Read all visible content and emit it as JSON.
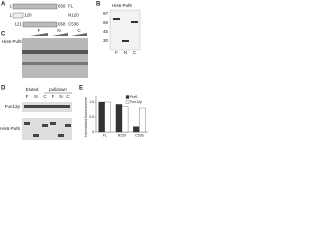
{
  "panels": {
    "a": {
      "letter": "A",
      "constructs": [
        {
          "start": 1,
          "end": 658,
          "name": "FL"
        },
        {
          "start": 1,
          "end": 120,
          "name": "N120"
        },
        {
          "start": 121,
          "end": 658,
          "name": "C536"
        }
      ]
    },
    "b": {
      "letter": "B",
      "title": "His6-Puf6",
      "lanes": [
        "F",
        "N",
        "C"
      ],
      "markers": [
        97,
        66,
        45,
        30
      ]
    },
    "c": {
      "letter": "C",
      "label": "His6-Puf6",
      "lanes": [
        "F",
        "N",
        "C"
      ]
    },
    "d": {
      "letter": "D",
      "eluted": "Eluted",
      "pulldown": "pulldown",
      "lanes": [
        "F",
        "N",
        "C",
        "F",
        "N",
        "C"
      ],
      "rows": [
        "Fun12p",
        "His6-Puf6"
      ]
    },
    "e": {
      "letter": "E"
    }
  },
  "chart_data": {
    "type": "bar",
    "ylabel": "Normalized fluorescence",
    "categories": [
      "FL",
      "N120",
      "C536"
    ],
    "series": [
      {
        "name": "Puf6",
        "color": "#333333",
        "values": [
          1,
          0.92,
          0.18
        ]
      },
      {
        "name": "Fun12p",
        "color": "#ffffff",
        "values": [
          1,
          0.85,
          0.8
        ]
      }
    ],
    "ylim": [
      0,
      1.2
    ],
    "yticks": [
      0,
      0.5,
      {
        "value": 1,
        "label": "1.0"
      }
    ],
    "legend": "top-right"
  }
}
